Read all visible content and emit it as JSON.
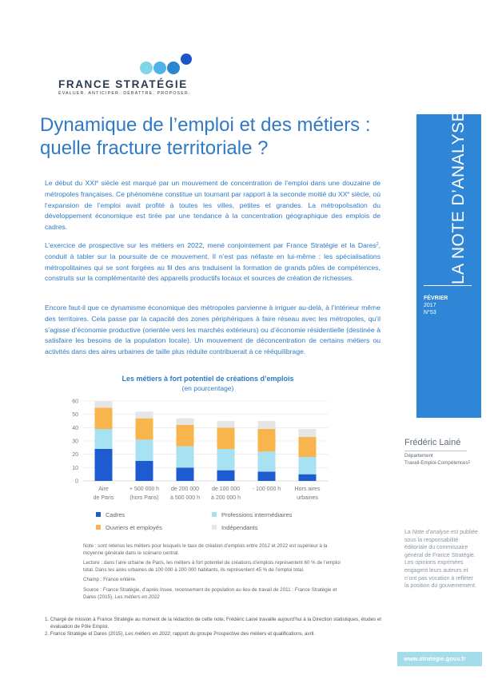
{
  "logo": {
    "name": "FRANCE STRATÉGIE",
    "tagline": "ÉVALUER. ANTICIPER. DÉBATTRE. PROPOSER.",
    "dot_colors": [
      "#7fd6e6",
      "#4fb3e8",
      "#2a86d1",
      "#1d56c9"
    ]
  },
  "title": {
    "line1": "Dynamique de l’emploi et des métiers :",
    "line2": "quelle fracture territoriale ?"
  },
  "body": {
    "p1_before": "Le début du XXI",
    "p1_sup1": "e",
    "p1_mid": " siècle est marqué par un mouvement de concentration de l’emploi dans une douzaine de métropoles françaises. Ce phénomène constitue un tournant par rapport à la seconde moitié du XX",
    "p1_sup2": "e",
    "p1_after": " siècle, où l’expansion de l’emploi avait profité à toutes les villes, petites et grandes. La métropolisation du développement économique est tirée par une tendance à la concentration géographique des emplois de cadres.",
    "p2_before": "L’exercice de prospective sur les métiers en 2022, mené conjointement par France Stratégie et la Dares",
    "p2_sup": "2",
    "p2_after": ", conduit à tabler sur la poursuite de ce mouvement. Il n’est pas néfaste en lui-même : les spécialisations métropolitaines qui se sont forgées au fil des ans traduisent la formation de grands pôles de compétences, construits sur la complémentarité des appareils productifs locaux et sources de création de richesses.",
    "p3": "Encore faut-il que ce dynamisme économique des métropoles parvienne à irriguer au-delà, à l’intérieur même des territoires. Cela passe par la capacité des zones périphériques à faire réseau avec les métropoles, qu’il s’agisse d’économie productive (orientée vers les marchés extérieurs) ou d’économie résidentielle (destinée à satisfaire les besoins de la population locale). Un mouvement de déconcentration de certains métiers ou activités dans des aires urbaines de taille plus réduite contribuerait à ce rééquilibrage."
  },
  "chart_data": {
    "type": "bar",
    "stacked": true,
    "title": "Les métiers à fort potentiel de créations d’emplois",
    "subtitle": "(en pourcentage)",
    "categories": [
      [
        "Aire",
        "de Paris"
      ],
      [
        "+ 500 000 h",
        "(hors Paris)"
      ],
      [
        "de 200 000",
        "à 500 000 h"
      ],
      [
        "de 100 000",
        "à 200 000 h"
      ],
      [
        "- 100 000 h",
        ""
      ],
      [
        "Hors aires",
        "urbaines"
      ]
    ],
    "yticks": [
      0,
      10,
      20,
      30,
      40,
      50,
      60
    ],
    "ylim": [
      0,
      60
    ],
    "series": [
      {
        "name": "Cadres",
        "color": "#1e5bd1",
        "values": [
          24,
          15,
          10,
          8,
          7,
          5
        ]
      },
      {
        "name": "Professions intermédiaires",
        "color": "#a8e1f2",
        "values": [
          15,
          16,
          16,
          16,
          15,
          13
        ]
      },
      {
        "name": "Ouvriers et employés",
        "color": "#f8b54d",
        "values": [
          16,
          16,
          16,
          16,
          17,
          15
        ]
      },
      {
        "name": "Indépendants",
        "color": "#e6e6e6",
        "values": [
          5,
          5,
          5,
          5,
          6,
          6
        ]
      }
    ]
  },
  "notes": {
    "note": "Note : sont retenus les métiers pour lesquels le taux de création d’emplois entre 2012 et 2022 est supérieur à la moyenne générale dans le scénario central.",
    "lecture": "Lecture : dans l’aire urbaine de Paris, les métiers à fort potentiel de créations d’emplois représentent 60 % de l’emploi total. Dans les aires urbaines de 100 000 à 200 000 habitants, ils représentent 45 % de l’emploi total.",
    "champ": "Champ : France entière.",
    "source_before": "Source : France Stratégie, d’après Insee, recensement de population au lieu de travail de 2011 ; France Stratégie et Dares (2015), ",
    "source_italic": "Les métiers en 2022"
  },
  "footnotes": {
    "f1": "1. Chargé de mission à France Stratégie au moment de la rédaction de cette note, Frédéric Lainé travaille aujourd’hui à la Direction statistiques, études et évaluation de Pôle Emploi.",
    "f2_before": "2. France Stratégie et Dares (2015), ",
    "f2_italic": "Les métiers en 2022",
    "f2_after": ", rapport du groupe Prospective des métiers et qualifications, avril."
  },
  "sidebar": {
    "label": "LA NOTE D’ANALYSE",
    "month": "FÉVRIER",
    "year": "2017",
    "number": "N°53",
    "band_color": "#2f86d6"
  },
  "author": {
    "name": "Frédéric Lainé",
    "dept1": "Département",
    "dept2": "Travail-Emploi-Compétences",
    "dept_sup": "1"
  },
  "publish": {
    "before": "La ",
    "italic": "Note d’analyse",
    "after": " est publiée sous la responsabilité éditoriale du commissaire général de France Stratégie. Les opinions exprimées engagent leurs auteurs et n’ont pas vocation à refléter la position du gouvernement."
  },
  "url": "www.strategie.gouv.fr"
}
